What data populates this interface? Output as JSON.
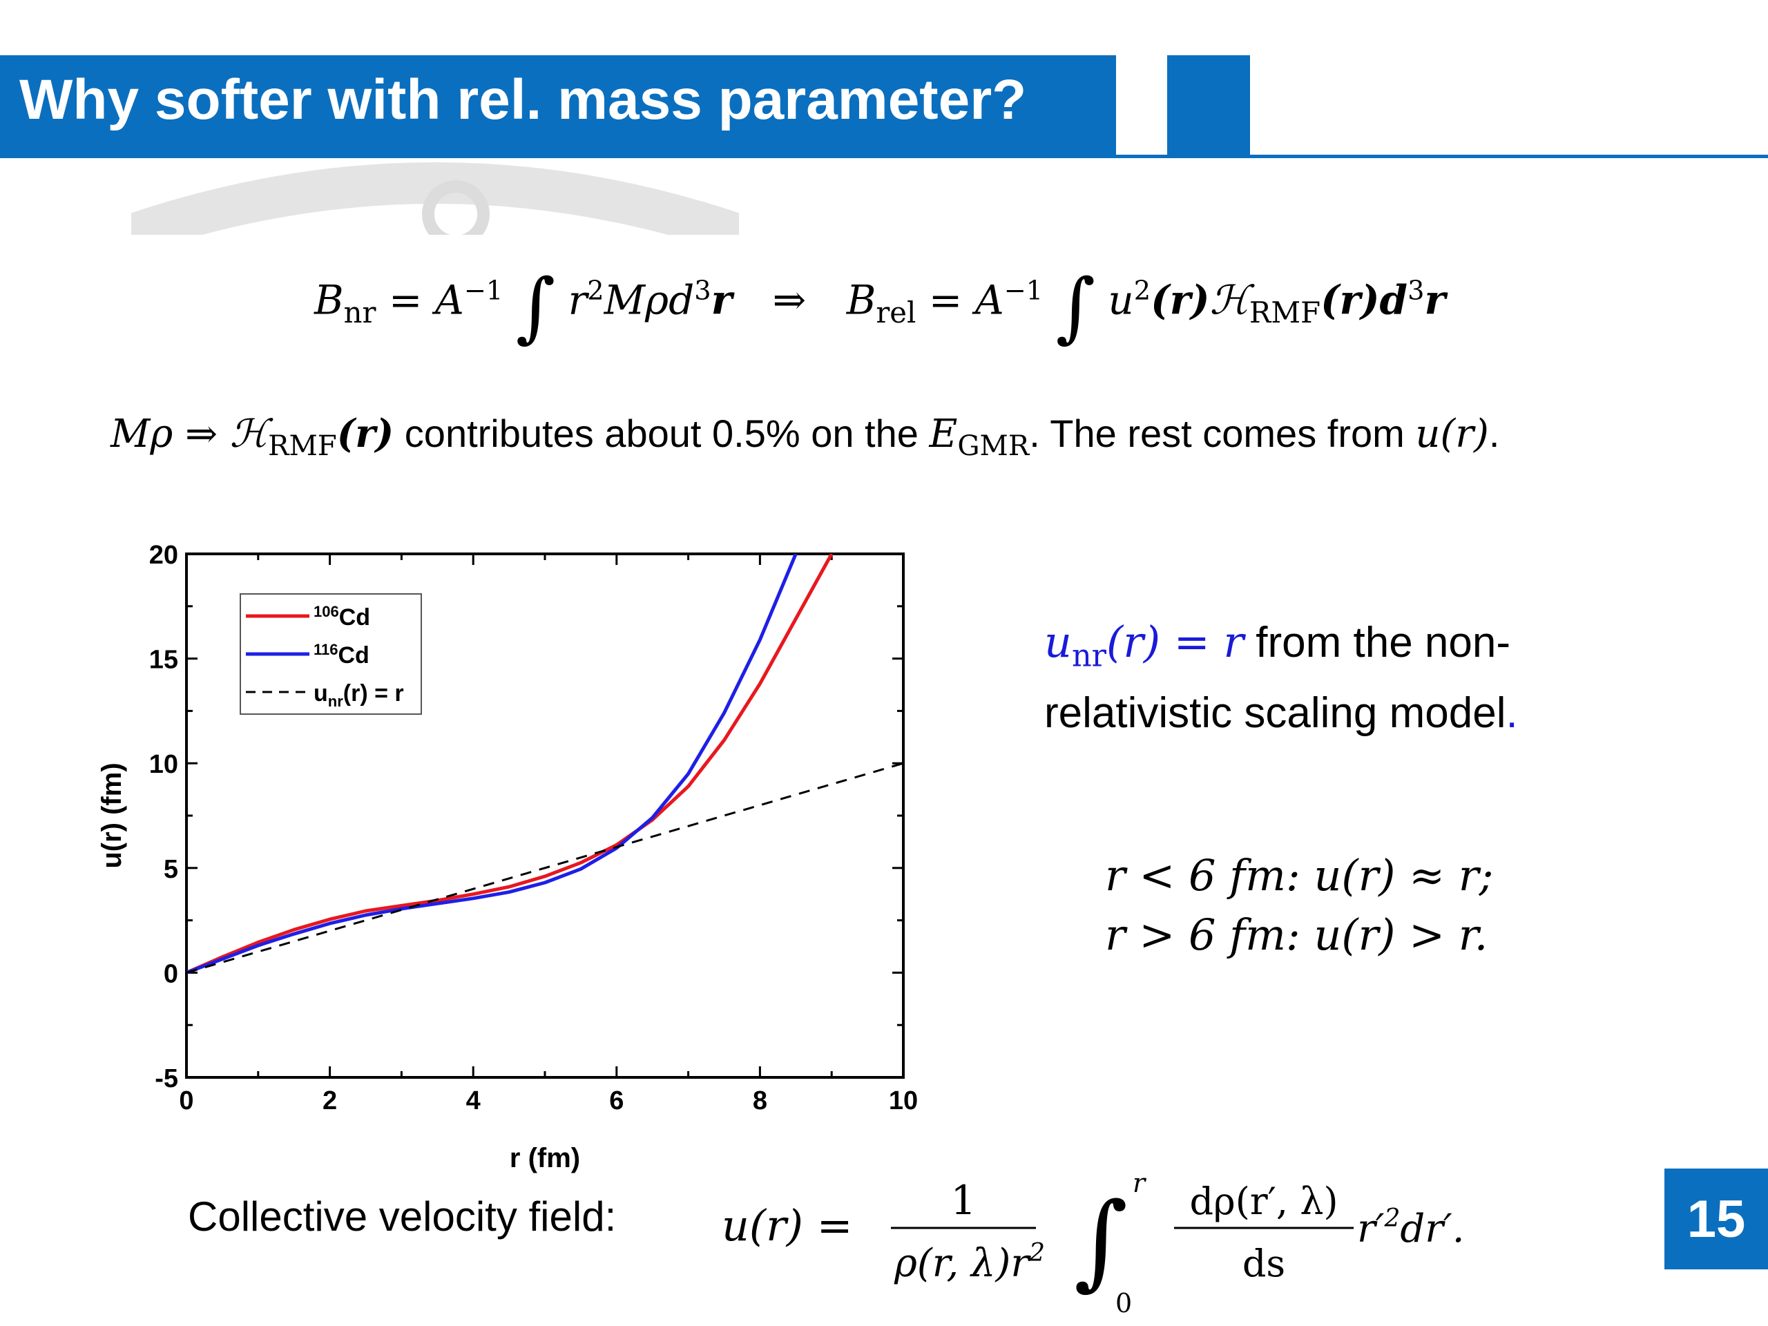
{
  "slide": {
    "title": "Why softer with rel. mass parameter?",
    "page_number": "15"
  },
  "equation1": {
    "lhs": "B",
    "lhs_sub": "nr",
    "eq": " = A",
    "inv": "−1",
    "integrand": "r",
    "sq": "2",
    "mid": "Mρd",
    "cube": "3",
    "r_bold": "r",
    "arrow": "⇒",
    "rhs": "B",
    "rhs_sub": "rel",
    "eq2": " = A",
    "inv2": "−1",
    "u": "u",
    "sq2": "2",
    "paren_r": "(r)",
    "H": "ℋ",
    "H_sub": "RMF",
    "paren_r2": "(r)d",
    "cube2": "3",
    "r_bold2": "r"
  },
  "statement": {
    "m_rho": "Mρ ⇒ ℋ",
    "h_sub": "RMF",
    "h_arg": "(r)",
    "text1": " contributes about 0.5% on the  ",
    "E": "E",
    "E_sub": "GMR",
    "text2": ". The rest comes from ",
    "u_r": "u(r)",
    "period": "."
  },
  "unr_note": {
    "u": "u",
    "u_sub": "nr",
    "expr": "(r) = r",
    "text": " from the non-relativistic scaling model",
    "period": "."
  },
  "conditions": {
    "line1": "r < 6 fm: u(r) ≈ r;",
    "line2": "r > 6 fm:  u(r) > r."
  },
  "collective": {
    "label": "Collective velocity field:",
    "lhs": "u(r) =",
    "frac_num": "1",
    "frac_den": "ρ(r, λ)r",
    "frac_den_sup": "2",
    "int_upper": "r",
    "int_lower": "0",
    "deriv_num": "dρ(r′, λ)",
    "deriv_den": "ds",
    "tail": "r′",
    "tail_sup": "2",
    "tail_end": "dr′."
  },
  "chart_data": {
    "type": "line",
    "xlabel": "r (fm)",
    "ylabel": "u(r) (fm)",
    "xlim": [
      0,
      10
    ],
    "ylim": [
      -5,
      20
    ],
    "xticks": [
      "0",
      "2",
      "4",
      "6",
      "8",
      "10"
    ],
    "yticks": [
      "-5",
      "0",
      "5",
      "10",
      "15",
      "20"
    ],
    "legend_position": "top-left",
    "series": [
      {
        "name": "106Cd",
        "name_sup": "106",
        "name_base": "Cd",
        "color": "#e8181f",
        "style": "solid",
        "x": [
          0,
          0.5,
          1,
          1.5,
          2,
          2.5,
          3,
          3.5,
          4,
          4.5,
          5,
          5.5,
          6,
          6.5,
          7,
          7.5,
          8,
          8.5,
          9
        ],
        "y": [
          0,
          0.75,
          1.45,
          2.05,
          2.55,
          2.95,
          3.2,
          3.45,
          3.75,
          4.1,
          4.6,
          5.25,
          6.1,
          7.3,
          8.9,
          11.1,
          13.8,
          16.9,
          20.0
        ]
      },
      {
        "name": "116Cd",
        "name_sup": "116",
        "name_base": "Cd",
        "color": "#1f1fe6",
        "style": "solid",
        "x": [
          0,
          0.5,
          1,
          1.5,
          2,
          2.5,
          3,
          3.5,
          4,
          4.5,
          5,
          5.5,
          6,
          6.5,
          7,
          7.5,
          8,
          8.5
        ],
        "y": [
          0,
          0.65,
          1.3,
          1.85,
          2.35,
          2.75,
          3.05,
          3.3,
          3.55,
          3.85,
          4.3,
          4.95,
          5.95,
          7.4,
          9.5,
          12.4,
          15.9,
          20.0
        ]
      },
      {
        "name": "unr(r) = r",
        "name_prefix": "u",
        "name_sub": "nr",
        "name_suffix": "(r) = r",
        "color": "#000000",
        "style": "dashed",
        "x": [
          0,
          10
        ],
        "y": [
          0,
          10
        ]
      }
    ]
  }
}
